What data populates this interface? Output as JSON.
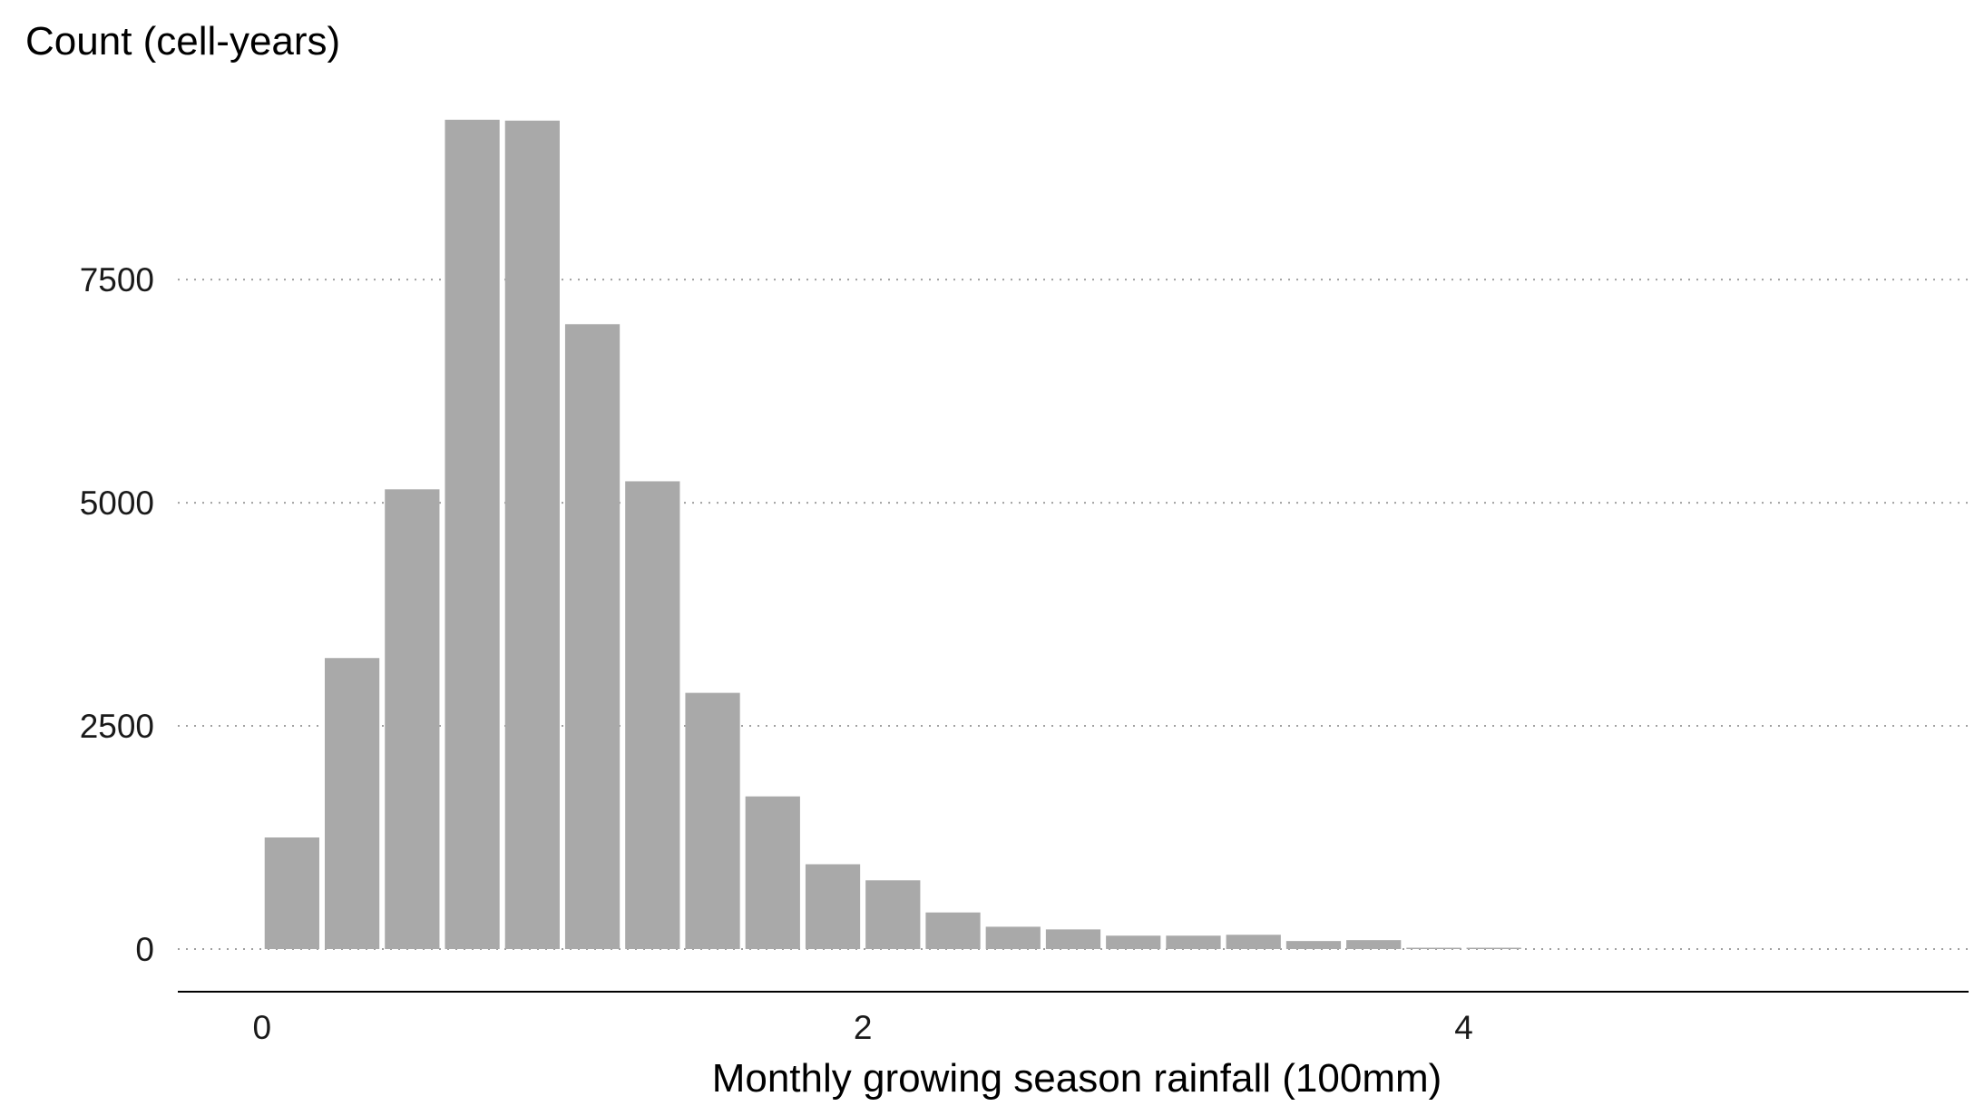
{
  "chart_data": {
    "type": "bar",
    "title": "",
    "xlabel": "Monthly growing season rainfall (100mm)",
    "ylabel": "Count (cell-years)",
    "xlim": [
      -0.28,
      5.68
    ],
    "ylim": [
      0,
      9300
    ],
    "x_ticks": [
      0,
      2,
      4
    ],
    "x_tick_labels": [
      "0",
      "2",
      "4"
    ],
    "y_ticks": [
      0,
      2500,
      5000,
      7500
    ],
    "y_tick_labels": [
      "0",
      "2500",
      "5000",
      "7500"
    ],
    "bin_width": 0.2,
    "bin_centers": [
      0.1,
      0.3,
      0.5,
      0.7,
      0.9,
      1.1,
      1.3,
      1.5,
      1.7,
      1.9,
      2.1,
      2.3,
      2.5,
      2.7,
      2.9,
      3.1,
      3.3,
      3.5,
      3.7,
      3.9,
      4.1
    ],
    "values": [
      1250,
      3260,
      5150,
      9290,
      9280,
      7000,
      5240,
      2870,
      1710,
      950,
      770,
      410,
      250,
      220,
      150,
      150,
      160,
      90,
      100,
      15,
      15
    ],
    "bar_color": "#a9a9a9",
    "grid": "horizontal dotted",
    "legend": "none"
  }
}
